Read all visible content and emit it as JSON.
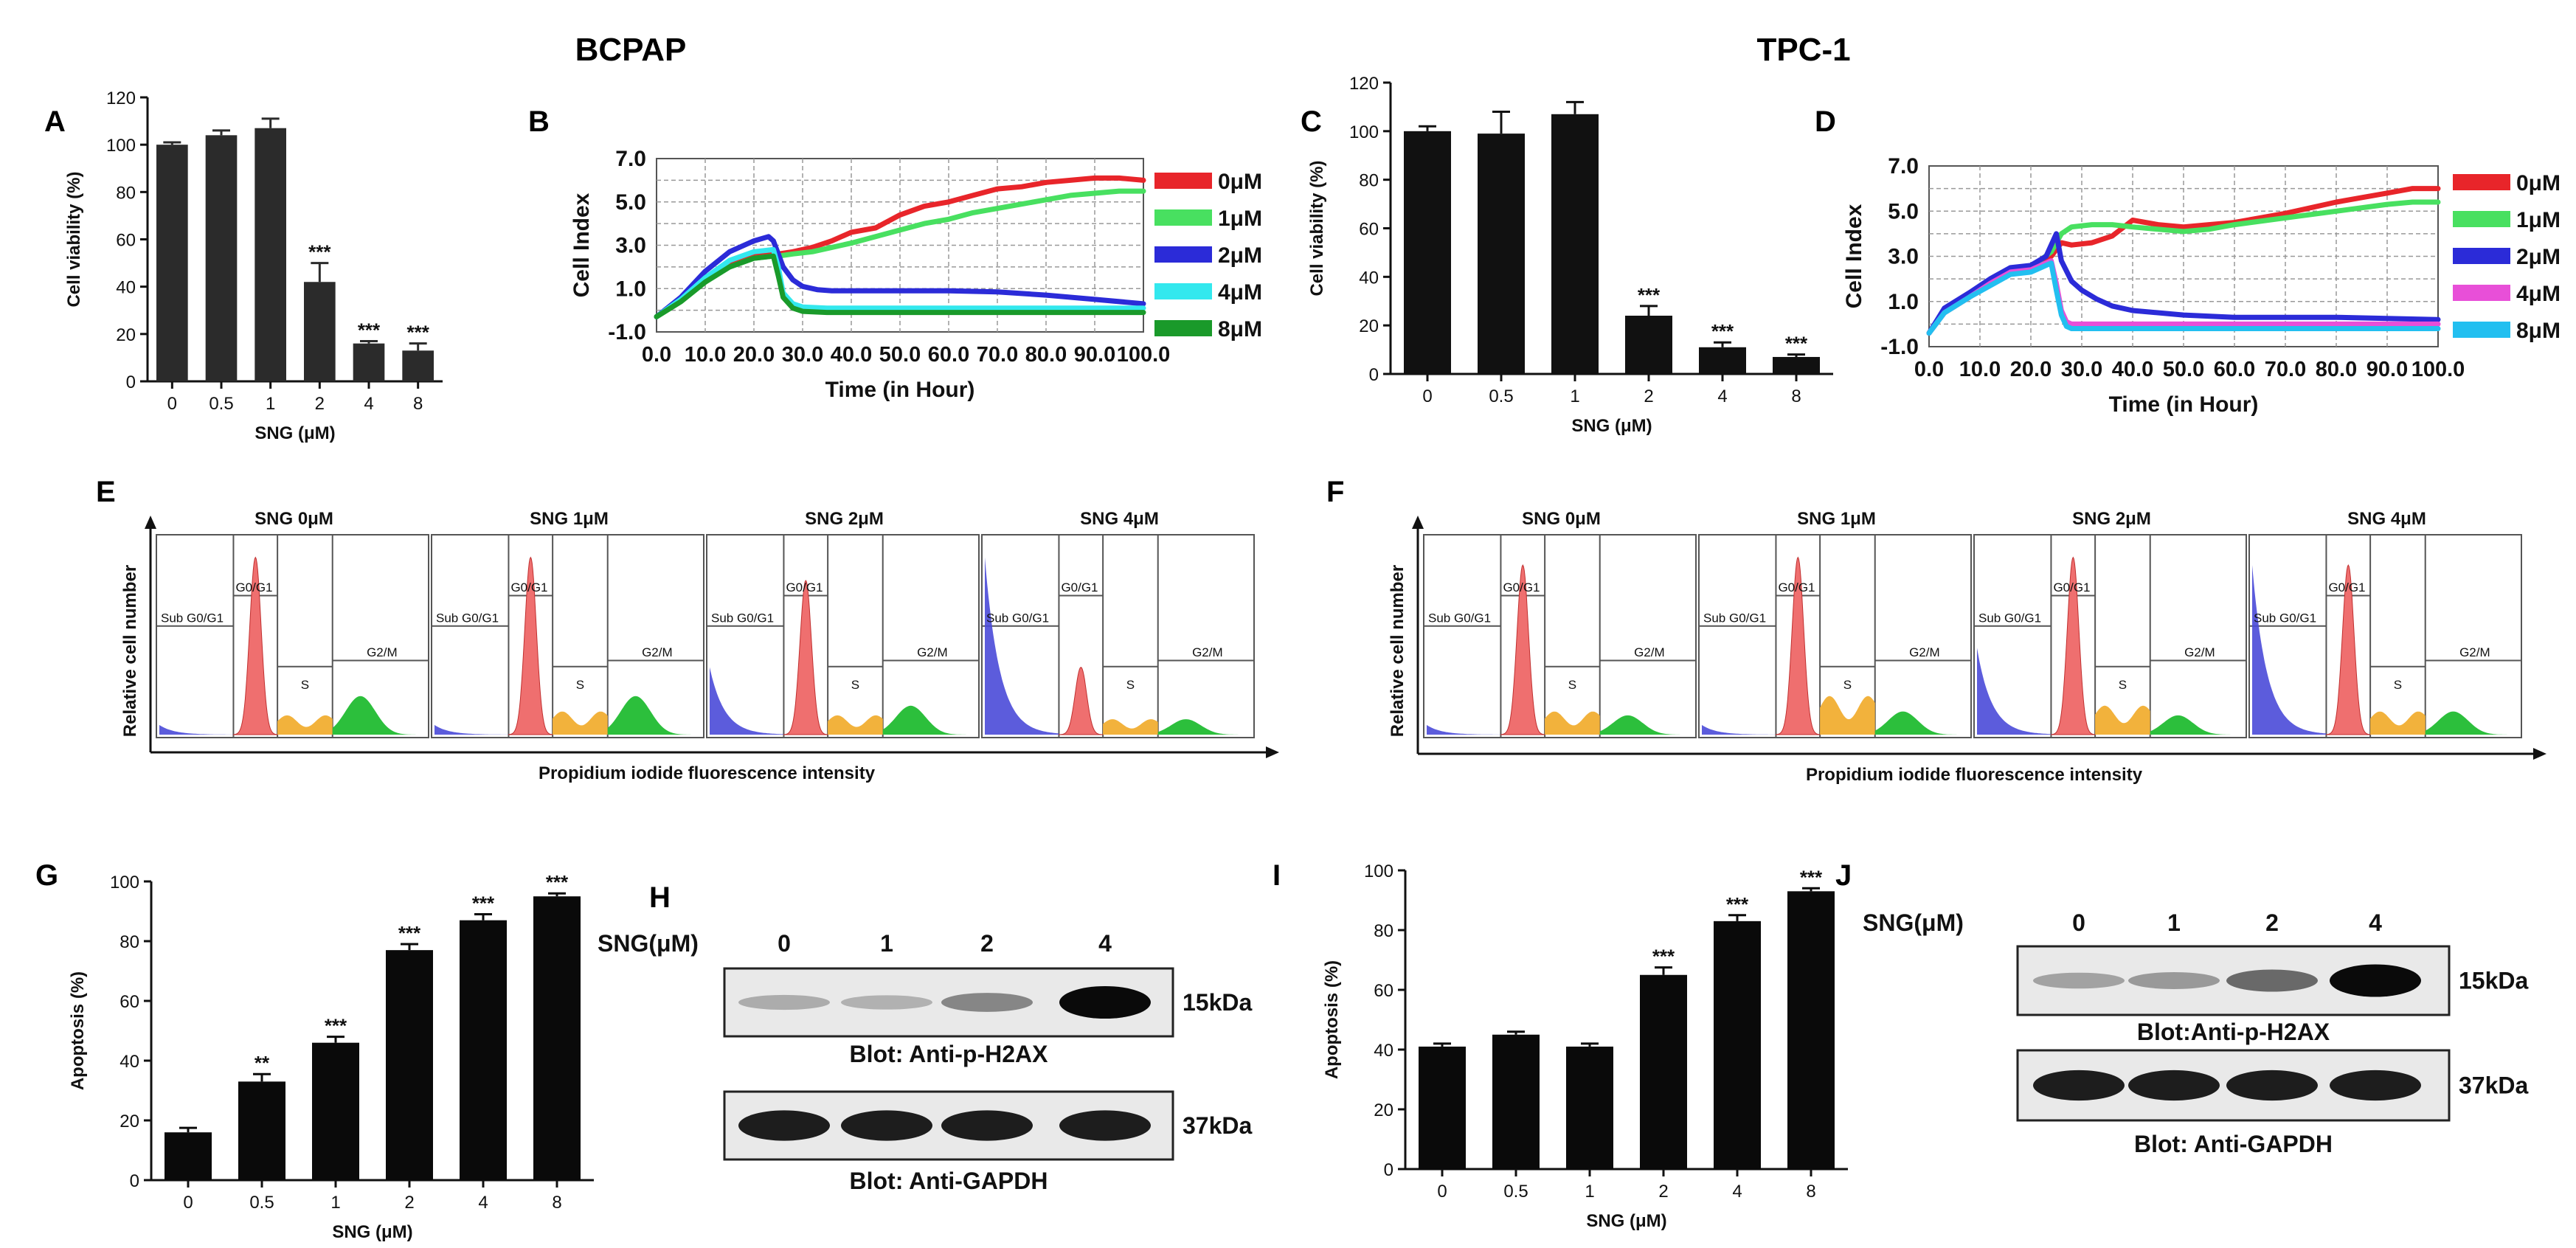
{
  "headers": {
    "left": "BCPAP",
    "right": "TPC-1"
  },
  "panel_letters": [
    "A",
    "B",
    "C",
    "D",
    "E",
    "F",
    "G",
    "H",
    "I",
    "J"
  ],
  "chart_data": [
    {
      "panel": "A",
      "type": "bar",
      "categories": [
        "0",
        "0.5",
        "1",
        "2",
        "4",
        "8"
      ],
      "values": [
        100,
        104,
        107,
        42,
        16,
        13
      ],
      "errors": [
        1,
        2,
        4,
        8,
        1,
        3
      ],
      "significance": [
        "",
        "",
        "",
        "***",
        "***",
        "***"
      ],
      "ylabel": "Cell viability (%)",
      "xlabel": "SNG (μM)",
      "ylim": [
        0,
        120
      ],
      "yticks": [
        0,
        20,
        40,
        60,
        80,
        100,
        120
      ],
      "color": "#2b2b2b"
    },
    {
      "panel": "B",
      "type": "line",
      "xlabel": "Time (in Hour)",
      "ylabel": "Cell Index",
      "xlim": [
        0,
        100
      ],
      "ylim": [
        -1,
        7
      ],
      "xticks": [
        "0.0",
        "10.0",
        "20.0",
        "30.0",
        "40.0",
        "50.0",
        "60.0",
        "70.0",
        "80.0",
        "90.0",
        "100.0"
      ],
      "yticks": [
        "7.0",
        "5.0",
        "3.0",
        "1.0",
        "-1.0"
      ],
      "grid": true,
      "series": [
        {
          "name": "0μM",
          "color": "#e8252a",
          "x": [
            0,
            5,
            10,
            15,
            20,
            24,
            25,
            28,
            32,
            36,
            40,
            45,
            50,
            55,
            60,
            65,
            70,
            75,
            80,
            85,
            90,
            95,
            100
          ],
          "y": [
            -0.3,
            0.5,
            1.5,
            2.2,
            2.6,
            2.7,
            2.6,
            2.7,
            2.9,
            3.2,
            3.6,
            3.8,
            4.4,
            4.8,
            5.0,
            5.3,
            5.6,
            5.7,
            5.9,
            6.0,
            6.1,
            6.1,
            6.0
          ]
        },
        {
          "name": "1μM",
          "color": "#48e060",
          "x": [
            0,
            5,
            10,
            15,
            20,
            24,
            25,
            28,
            32,
            36,
            40,
            45,
            50,
            55,
            60,
            65,
            70,
            75,
            80,
            85,
            90,
            95,
            100
          ],
          "y": [
            -0.3,
            0.4,
            1.3,
            2.0,
            2.4,
            2.5,
            2.5,
            2.6,
            2.7,
            2.9,
            3.1,
            3.4,
            3.7,
            4.0,
            4.2,
            4.5,
            4.7,
            4.9,
            5.1,
            5.3,
            5.4,
            5.5,
            5.5
          ]
        },
        {
          "name": "2μM",
          "color": "#2b2bd8",
          "x": [
            0,
            5,
            10,
            15,
            20,
            23,
            24,
            26,
            28,
            30,
            33,
            36,
            40,
            50,
            60,
            70,
            80,
            90,
            100
          ],
          "y": [
            -0.3,
            0.6,
            1.8,
            2.7,
            3.2,
            3.4,
            3.2,
            2.0,
            1.4,
            1.1,
            0.95,
            0.9,
            0.9,
            0.9,
            0.9,
            0.85,
            0.7,
            0.5,
            0.3
          ]
        },
        {
          "name": "4μM",
          "color": "#33e8ee",
          "x": [
            0,
            5,
            10,
            15,
            20,
            24,
            25,
            26,
            28,
            30,
            35,
            40,
            50,
            60,
            70,
            80,
            90,
            100
          ],
          "y": [
            -0.3,
            0.5,
            1.5,
            2.3,
            2.7,
            2.8,
            2.0,
            0.8,
            0.3,
            0.15,
            0.1,
            0.1,
            0.1,
            0.1,
            0.1,
            0.1,
            0.1,
            0.1
          ]
        },
        {
          "name": "8μM",
          "color": "#1a9a2a",
          "x": [
            0,
            5,
            10,
            15,
            20,
            24,
            25,
            26,
            28,
            30,
            35,
            40,
            50,
            60,
            70,
            80,
            90,
            100
          ],
          "y": [
            -0.3,
            0.4,
            1.3,
            2.0,
            2.4,
            2.5,
            1.6,
            0.6,
            0.1,
            -0.05,
            -0.1,
            -0.1,
            -0.1,
            -0.1,
            -0.1,
            -0.1,
            -0.1,
            -0.1
          ]
        }
      ]
    },
    {
      "panel": "C",
      "type": "bar",
      "categories": [
        "0",
        "0.5",
        "1",
        "2",
        "4",
        "8"
      ],
      "values": [
        100,
        99,
        107,
        24,
        11,
        7
      ],
      "errors": [
        2,
        9,
        5,
        4,
        2,
        1
      ],
      "significance": [
        "",
        "",
        "",
        "***",
        "***",
        "***"
      ],
      "ylabel": "Cell viability (%)",
      "xlabel": "SNG (μM)",
      "ylim": [
        0,
        120
      ],
      "yticks": [
        0,
        20,
        40,
        60,
        80,
        100,
        120
      ],
      "color": "#111111"
    },
    {
      "panel": "D",
      "type": "line",
      "xlabel": "Time (in Hour)",
      "ylabel": "Cell Index",
      "xlim": [
        0,
        100
      ],
      "ylim": [
        -1,
        7
      ],
      "xticks": [
        "0.0",
        "10.0",
        "20.0",
        "30.0",
        "40.0",
        "50.0",
        "60.0",
        "70.0",
        "80.0",
        "90.0",
        "100.0"
      ],
      "yticks": [
        "7.0",
        "5.0",
        "3.0",
        "1.0",
        "-1.0"
      ],
      "grid": true,
      "series": [
        {
          "name": "0μM",
          "color": "#e8252a",
          "x": [
            0,
            3,
            8,
            12,
            16,
            20,
            24,
            26,
            28,
            32,
            36,
            40,
            45,
            50,
            55,
            60,
            70,
            80,
            90,
            95,
            100
          ],
          "y": [
            -0.4,
            0.6,
            1.3,
            1.8,
            2.4,
            2.5,
            3.0,
            3.6,
            3.5,
            3.6,
            3.9,
            4.6,
            4.4,
            4.3,
            4.4,
            4.5,
            4.9,
            5.4,
            5.8,
            6.0,
            6.0
          ]
        },
        {
          "name": "1μM",
          "color": "#48e060",
          "x": [
            0,
            3,
            8,
            12,
            16,
            20,
            24,
            26,
            28,
            32,
            36,
            40,
            45,
            50,
            55,
            60,
            70,
            80,
            90,
            95,
            100
          ],
          "y": [
            -0.4,
            0.5,
            1.2,
            1.8,
            2.3,
            2.5,
            3.2,
            4.0,
            4.3,
            4.4,
            4.4,
            4.3,
            4.2,
            4.1,
            4.2,
            4.4,
            4.7,
            5.0,
            5.3,
            5.4,
            5.4
          ]
        },
        {
          "name": "2μM",
          "color": "#2b2bd8",
          "x": [
            0,
            3,
            8,
            12,
            16,
            20,
            23,
            25,
            26,
            28,
            30,
            33,
            36,
            40,
            50,
            60,
            70,
            80,
            90,
            100
          ],
          "y": [
            -0.4,
            0.7,
            1.4,
            2.0,
            2.5,
            2.6,
            3.0,
            4.0,
            2.8,
            1.9,
            1.5,
            1.1,
            0.8,
            0.6,
            0.4,
            0.3,
            0.3,
            0.3,
            0.25,
            0.2
          ]
        },
        {
          "name": "4μM",
          "color": "#e84fd8",
          "x": [
            0,
            3,
            8,
            12,
            16,
            20,
            24,
            25,
            26,
            27,
            28,
            30,
            35,
            40,
            50,
            60,
            70,
            80,
            90,
            100
          ],
          "y": [
            -0.4,
            0.5,
            1.2,
            1.8,
            2.3,
            2.4,
            2.8,
            1.8,
            0.6,
            0.1,
            0.0,
            0.0,
            0.0,
            0.0,
            0.0,
            0.0,
            0.0,
            0.0,
            0.0,
            0.0
          ]
        },
        {
          "name": "8μM",
          "color": "#22bff0",
          "x": [
            0,
            3,
            8,
            12,
            16,
            20,
            24,
            25,
            26,
            27,
            28,
            30,
            35,
            40,
            50,
            60,
            70,
            80,
            90,
            100
          ],
          "y": [
            -0.4,
            0.5,
            1.2,
            1.7,
            2.2,
            2.3,
            2.7,
            1.5,
            0.4,
            -0.1,
            -0.2,
            -0.2,
            -0.2,
            -0.2,
            -0.2,
            -0.2,
            -0.2,
            -0.2,
            -0.2,
            -0.2
          ]
        }
      ]
    },
    {
      "panel": "E",
      "type": "histogram",
      "xlabel": "Propidium iodide fluorescence intensity",
      "ylabel": "Relative cell number",
      "subpanels": [
        {
          "title": "SNG 0μM",
          "gate_labels": [
            "Sub G0/G1",
            "G0/G1",
            "S",
            "G2/M"
          ],
          "sub_g0_height": 0.05,
          "g1_height": 0.92,
          "s_height": 0.1,
          "g2_height": 0.2
        },
        {
          "title": "SNG 1μM",
          "gate_labels": [
            "Sub G0/G1",
            "G0/G1",
            "S",
            "G2/M"
          ],
          "sub_g0_height": 0.05,
          "g1_height": 0.92,
          "s_height": 0.12,
          "g2_height": 0.2
        },
        {
          "title": "SNG 2μM",
          "gate_labels": [
            "Sub G0/G1",
            "G0/G1",
            "S",
            "G2/M"
          ],
          "sub_g0_height": 0.35,
          "g1_height": 0.8,
          "s_height": 0.1,
          "g2_height": 0.15
        },
        {
          "title": "SNG  4μM",
          "gate_labels": [
            "Sub G0/G1",
            "G0/G1",
            "S",
            "G2/M"
          ],
          "sub_g0_height": 0.92,
          "g1_height": 0.35,
          "s_height": 0.08,
          "g2_height": 0.08
        }
      ]
    },
    {
      "panel": "F",
      "type": "histogram",
      "xlabel": "Propidium iodide fluorescence intensity",
      "ylabel": "Relative cell number",
      "subpanels": [
        {
          "title": "SNG 0μM",
          "gate_labels": [
            "Sub G0/G1",
            "G0/G1",
            "S",
            "G2/M"
          ],
          "sub_g0_height": 0.05,
          "g1_height": 0.88,
          "s_height": 0.12,
          "g2_height": 0.1
        },
        {
          "title": "SNG 1μM",
          "gate_labels": [
            "Sub G0/G1",
            "G0/G1",
            "S",
            "G2/M"
          ],
          "sub_g0_height": 0.05,
          "g1_height": 0.92,
          "s_height": 0.2,
          "g2_height": 0.12
        },
        {
          "title": "SNG 2μM",
          "gate_labels": [
            "Sub G0/G1",
            "G0/G1",
            "S",
            "G2/M"
          ],
          "sub_g0_height": 0.45,
          "g1_height": 0.92,
          "s_height": 0.15,
          "g2_height": 0.1
        },
        {
          "title": "SNG  4μM",
          "gate_labels": [
            "Sub G0/G1",
            "G0/G1",
            "S",
            "G2/M"
          ],
          "sub_g0_height": 0.88,
          "g1_height": 0.88,
          "s_height": 0.12,
          "g2_height": 0.12
        }
      ]
    },
    {
      "panel": "G",
      "type": "bar",
      "categories": [
        "0",
        "0.5",
        "1",
        "2",
        "4",
        "8"
      ],
      "values": [
        16,
        33,
        46,
        77,
        87,
        95
      ],
      "errors": [
        1.5,
        2.5,
        2,
        2,
        2,
        1
      ],
      "significance": [
        "",
        "**",
        "***",
        "***",
        "***",
        "***"
      ],
      "ylabel": "Apoptosis (%)",
      "xlabel": "SNG (μM)",
      "ylim": [
        0,
        100
      ],
      "yticks": [
        0,
        20,
        40,
        60,
        80,
        100
      ],
      "color": "#0a0a0a"
    },
    {
      "panel": "H",
      "type": "western_blot",
      "conc_label": "SNG(μM)",
      "lanes": [
        "0",
        "1",
        "2",
        "4"
      ],
      "blots": [
        {
          "caption": "Blot: Anti-p-H2AX",
          "size": "15kDa",
          "intensities": [
            0.15,
            0.12,
            0.35,
            1.0
          ]
        },
        {
          "caption": "Blot: Anti-GAPDH",
          "size": "37kDa",
          "intensities": [
            0.9,
            0.9,
            0.9,
            0.9
          ]
        }
      ]
    },
    {
      "panel": "I",
      "type": "bar",
      "categories": [
        "0",
        "0.5",
        "1",
        "2",
        "4",
        "8"
      ],
      "values": [
        41,
        45,
        41,
        65,
        83,
        93
      ],
      "errors": [
        1,
        1,
        1,
        2.5,
        2,
        1
      ],
      "significance": [
        "",
        "",
        "",
        "***",
        "***",
        "***"
      ],
      "ylabel": "Apoptosis (%)",
      "xlabel": "SNG (μM)",
      "ylim": [
        0,
        100
      ],
      "yticks": [
        0,
        20,
        40,
        60,
        80,
        100
      ],
      "color": "#0a0a0a"
    },
    {
      "panel": "J",
      "type": "western_blot",
      "conc_label": "SNG(μM)",
      "lanes": [
        "0",
        "1",
        "2",
        "4"
      ],
      "blots": [
        {
          "caption": "Blot:Anti-p-H2AX",
          "size": "15kDa",
          "intensities": [
            0.2,
            0.25,
            0.5,
            1.0
          ]
        },
        {
          "caption": "Blot: Anti-GAPDH",
          "size": "37kDa",
          "intensities": [
            0.9,
            0.9,
            0.9,
            0.9
          ]
        }
      ]
    }
  ]
}
